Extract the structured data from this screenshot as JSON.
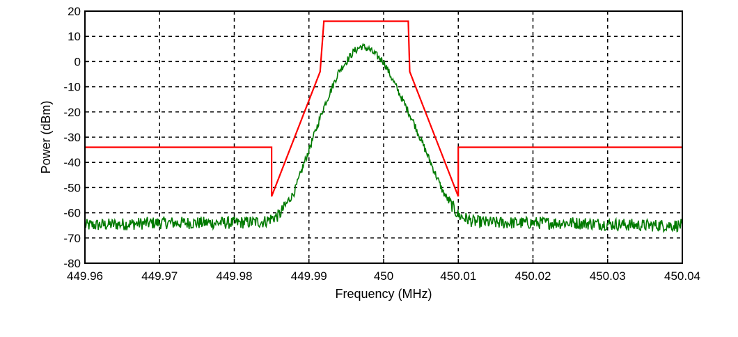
{
  "chart_data": {
    "type": "line",
    "title": "",
    "xlabel": "Frequency (MHz)",
    "ylabel": "Power (dBm)",
    "xlim": [
      449.96,
      450.04
    ],
    "ylim": [
      -80,
      20
    ],
    "grid": true,
    "grid_style": "dashed",
    "xticks": [
      449.96,
      449.97,
      449.98,
      449.99,
      450,
      450.01,
      450.02,
      450.03,
      450.04
    ],
    "xtick_labels": [
      "449.96",
      "449.97",
      "449.98",
      "449.99",
      "450",
      "450.01",
      "450.02",
      "450.03",
      "450.04"
    ],
    "yticks": [
      20,
      10,
      0,
      -10,
      -20,
      -30,
      -40,
      -50,
      -60,
      -70,
      -80
    ],
    "ytick_labels": [
      "20",
      "10",
      "0",
      "-10",
      "-20",
      "-30",
      "-40",
      "-50",
      "-60",
      "-70",
      "-80"
    ],
    "series": [
      {
        "color": "#ff0000",
        "x": [
          449.96,
          449.985,
          449.985,
          449.9915,
          449.992,
          450.0033,
          450.0035,
          450.01,
          450.01,
          450.04
        ],
        "y": [
          -34,
          -34,
          -53.5,
          -4,
          16,
          16,
          -4,
          -53.5,
          -34,
          -34
        ]
      },
      {
        "color": "#007a00",
        "x": [
          449.96,
          449.965,
          449.97,
          449.975,
          449.98,
          449.984,
          449.986,
          449.988,
          449.99,
          449.992,
          449.994,
          449.996,
          449.997,
          449.998,
          450,
          450.002,
          450.004,
          450.006,
          450.008,
          450.01,
          450.012,
          450.015,
          450.02,
          450.025,
          450.03,
          450.035,
          450.04
        ],
        "y": [
          -65,
          -64.5,
          -64,
          -64,
          -64,
          -63.5,
          -61,
          -52,
          -35,
          -18,
          -4,
          4,
          6,
          5,
          0,
          -12,
          -24,
          -38,
          -52,
          -61,
          -63.5,
          -64,
          -64,
          -64,
          -64.5,
          -65,
          -65
        ]
      }
    ]
  }
}
